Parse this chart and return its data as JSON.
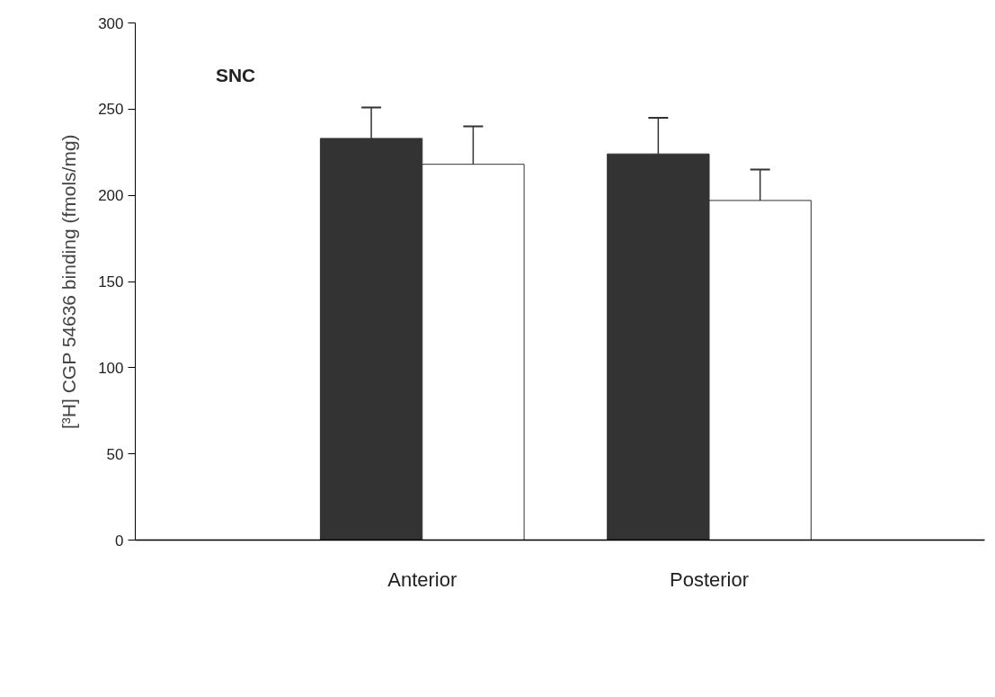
{
  "chart_data": {
    "type": "bar",
    "categories": [
      "Anterior",
      "Posterior"
    ],
    "ylabel": "[³H] CGP 54636 binding (fmols/mg)",
    "annotations": [
      "SNC"
    ],
    "series": [
      {
        "color": "#333333",
        "values": [
          233,
          224
        ],
        "errors": [
          [
            233,
            251
          ],
          [
            224,
            245
          ]
        ]
      },
      {
        "color": "#ffffff",
        "values": [
          218,
          197
        ],
        "errors": [
          [
            218,
            240
          ],
          [
            197,
            215
          ]
        ]
      }
    ],
    "ylim": [
      0,
      300
    ],
    "yticks": [
      0,
      50,
      100,
      150,
      200,
      250,
      300
    ],
    "grid": false
  }
}
